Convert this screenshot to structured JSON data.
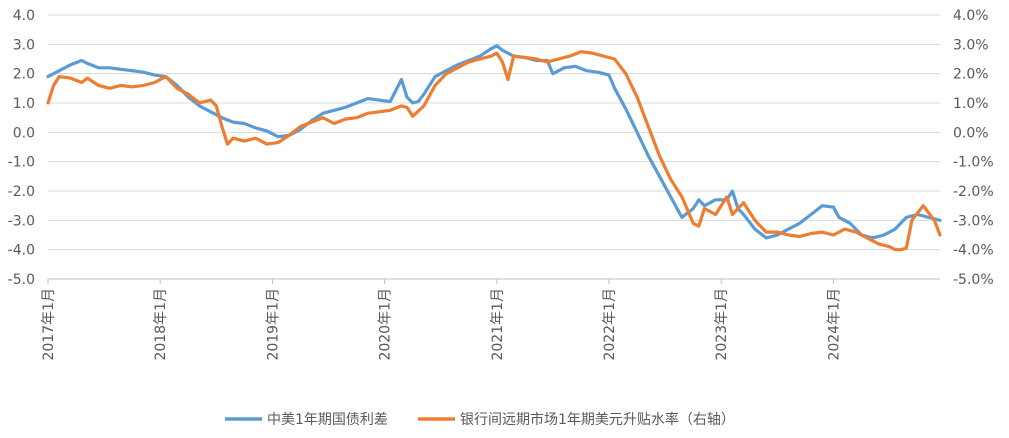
{
  "chart_data": {
    "type": "line",
    "title": "",
    "xlabel": "",
    "ylabel_left": "",
    "ylabel_right": "",
    "grid": true,
    "legend_position": "bottom",
    "x_tick_labels": [
      "2017年1月",
      "2018年1月",
      "2019年1月",
      "2020年1月",
      "2021年1月",
      "2022年1月",
      "2023年1月",
      "2024年1月"
    ],
    "y_left": {
      "range": [
        -5.0,
        4.0
      ],
      "ticks": [
        "4.0",
        "3.0",
        "2.0",
        "1.0",
        "0.0",
        "-1.0",
        "-2.0",
        "-3.0",
        "-4.0",
        "-5.0"
      ]
    },
    "y_right": {
      "range": [
        -5.0,
        4.0
      ],
      "ticks": [
        "4.0%",
        "3.0%",
        "2.0%",
        "1.0%",
        "0.0%",
        "-1.0%",
        "-2.0%",
        "-3.0%",
        "-4.0%",
        "-5.0%"
      ]
    },
    "x_range": [
      2017.0,
      2024.95
    ],
    "series": [
      {
        "name": "中美1年期国债利差",
        "color": "#5B9BD5",
        "axis": "left",
        "x": [
          2017.0,
          2017.05,
          2017.1,
          2017.2,
          2017.3,
          2017.35,
          2017.45,
          2017.55,
          2017.65,
          2017.75,
          2017.85,
          2017.95,
          2018.05,
          2018.15,
          2018.25,
          2018.35,
          2018.45,
          2018.55,
          2018.65,
          2018.75,
          2018.85,
          2018.95,
          2019.05,
          2019.15,
          2019.25,
          2019.35,
          2019.45,
          2019.55,
          2019.65,
          2019.75,
          2019.85,
          2019.95,
          2020.05,
          2020.15,
          2020.2,
          2020.25,
          2020.3,
          2020.35,
          2020.45,
          2020.55,
          2020.65,
          2020.75,
          2020.85,
          2020.95,
          2021.0,
          2021.05,
          2021.15,
          2021.25,
          2021.35,
          2021.45,
          2021.5,
          2021.6,
          2021.7,
          2021.8,
          2021.9,
          2022.0,
          2022.05,
          2022.15,
          2022.25,
          2022.35,
          2022.45,
          2022.55,
          2022.65,
          2022.75,
          2022.8,
          2022.85,
          2022.95,
          2023.05,
          2023.1,
          2023.15,
          2023.2,
          2023.3,
          2023.4,
          2023.5,
          2023.6,
          2023.7,
          2023.8,
          2023.9,
          2024.0,
          2024.05,
          2024.15,
          2024.25,
          2024.35,
          2024.45,
          2024.55,
          2024.65,
          2024.75,
          2024.85,
          2024.95
        ],
        "y": [
          1.9,
          2.0,
          2.1,
          2.3,
          2.45,
          2.35,
          2.2,
          2.2,
          2.15,
          2.1,
          2.05,
          1.95,
          1.9,
          1.6,
          1.2,
          0.9,
          0.7,
          0.5,
          0.35,
          0.3,
          0.15,
          0.05,
          -0.15,
          -0.1,
          0.1,
          0.4,
          0.65,
          0.75,
          0.85,
          1.0,
          1.15,
          1.1,
          1.05,
          1.8,
          1.2,
          1.0,
          1.05,
          1.3,
          1.9,
          2.1,
          2.3,
          2.45,
          2.6,
          2.85,
          2.95,
          2.8,
          2.6,
          2.55,
          2.45,
          2.45,
          2.0,
          2.2,
          2.25,
          2.1,
          2.05,
          1.95,
          1.5,
          0.8,
          0.0,
          -0.8,
          -1.5,
          -2.2,
          -2.9,
          -2.6,
          -2.3,
          -2.5,
          -2.3,
          -2.3,
          -2.0,
          -2.6,
          -2.8,
          -3.3,
          -3.6,
          -3.5,
          -3.3,
          -3.1,
          -2.8,
          -2.5,
          -2.55,
          -2.9,
          -3.1,
          -3.5,
          -3.6,
          -3.5,
          -3.3,
          -2.9,
          -2.8,
          -2.9,
          -3.0
        ]
      },
      {
        "name": "银行间远期市场1年期美元升贴水率（右轴）",
        "color": "#ED7D31",
        "axis": "right",
        "x": [
          2017.0,
          2017.05,
          2017.1,
          2017.2,
          2017.3,
          2017.35,
          2017.45,
          2017.55,
          2017.65,
          2017.75,
          2017.85,
          2017.95,
          2018.05,
          2018.15,
          2018.25,
          2018.35,
          2018.45,
          2018.5,
          2018.55,
          2018.6,
          2018.65,
          2018.75,
          2018.85,
          2018.95,
          2019.05,
          2019.15,
          2019.25,
          2019.35,
          2019.45,
          2019.55,
          2019.65,
          2019.75,
          2019.85,
          2019.95,
          2020.05,
          2020.15,
          2020.2,
          2020.25,
          2020.35,
          2020.45,
          2020.55,
          2020.65,
          2020.75,
          2020.85,
          2020.95,
          2021.0,
          2021.05,
          2021.1,
          2021.15,
          2021.25,
          2021.35,
          2021.45,
          2021.55,
          2021.65,
          2021.75,
          2021.85,
          2021.95,
          2022.05,
          2022.15,
          2022.25,
          2022.35,
          2022.45,
          2022.55,
          2022.65,
          2022.75,
          2022.8,
          2022.85,
          2022.95,
          2023.05,
          2023.1,
          2023.2,
          2023.3,
          2023.4,
          2023.5,
          2023.6,
          2023.7,
          2023.8,
          2023.9,
          2024.0,
          2024.1,
          2024.2,
          2024.3,
          2024.4,
          2024.5,
          2024.55,
          2024.6,
          2024.65,
          2024.7,
          2024.8,
          2024.9,
          2024.95
        ],
        "y": [
          1.0,
          1.6,
          1.9,
          1.85,
          1.7,
          1.85,
          1.6,
          1.5,
          1.6,
          1.55,
          1.6,
          1.7,
          1.9,
          1.5,
          1.3,
          1.0,
          1.1,
          0.9,
          0.2,
          -0.4,
          -0.2,
          -0.3,
          -0.2,
          -0.4,
          -0.35,
          -0.1,
          0.2,
          0.35,
          0.5,
          0.3,
          0.45,
          0.5,
          0.65,
          0.7,
          0.75,
          0.9,
          0.85,
          0.55,
          0.9,
          1.6,
          2.0,
          2.2,
          2.4,
          2.5,
          2.6,
          2.7,
          2.4,
          1.8,
          2.6,
          2.55,
          2.5,
          2.4,
          2.5,
          2.6,
          2.75,
          2.7,
          2.6,
          2.5,
          2.0,
          1.2,
          0.2,
          -0.8,
          -1.6,
          -2.2,
          -3.1,
          -3.2,
          -2.6,
          -2.8,
          -2.2,
          -2.8,
          -2.4,
          -3.0,
          -3.4,
          -3.4,
          -3.5,
          -3.55,
          -3.45,
          -3.4,
          -3.5,
          -3.3,
          -3.4,
          -3.6,
          -3.8,
          -3.9,
          -4.0,
          -4.0,
          -3.95,
          -3.0,
          -2.5,
          -3.0,
          -3.5
        ]
      }
    ]
  }
}
